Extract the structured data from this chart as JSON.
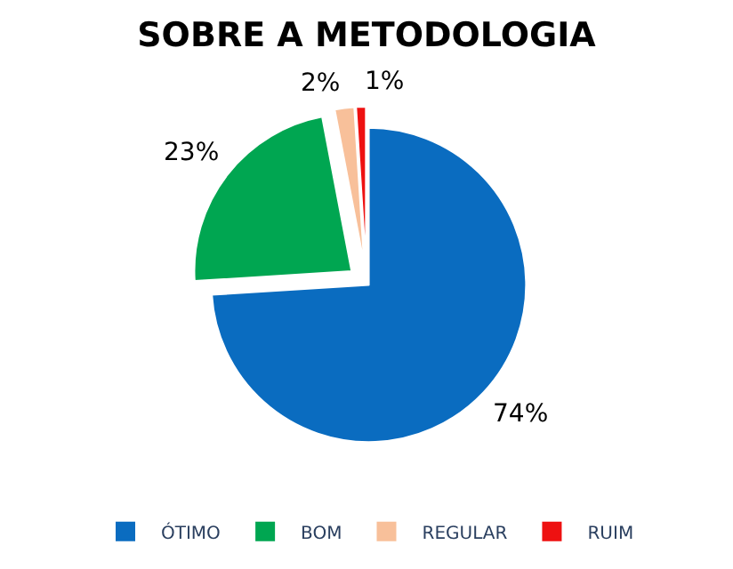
{
  "chart_data": {
    "type": "pie",
    "title": "SOBRE A METODOLOGIA",
    "categories": [
      "ÓTIMO",
      "BOM",
      "REGULAR",
      "RUIM"
    ],
    "values": [
      74,
      23,
      2,
      1
    ],
    "value_labels": [
      "74%",
      "23%",
      "2%",
      "1%"
    ],
    "colors": [
      "#0a6cc0",
      "#00a651",
      "#f8c09a",
      "#ee1111"
    ],
    "legend": "bottom"
  }
}
